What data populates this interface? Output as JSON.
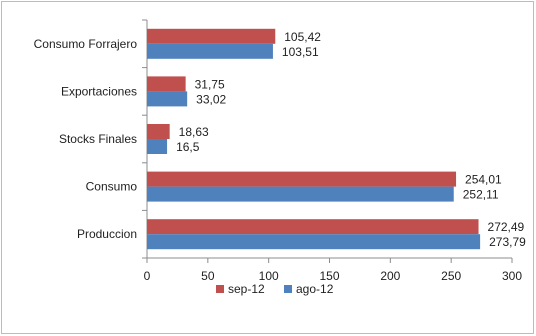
{
  "chart_data": {
    "type": "bar",
    "orientation": "horizontal",
    "categories": [
      "Consumo Forrajero",
      "Exportaciones",
      "Stocks Finales",
      "Consumo",
      "Produccion"
    ],
    "series": [
      {
        "name": "sep-12",
        "color": "#c0504d",
        "values": [
          105.42,
          31.75,
          18.63,
          254.01,
          272.49
        ],
        "labels": [
          "105,42",
          "31,75",
          "18,63",
          "254,01",
          "272,49"
        ]
      },
      {
        "name": "ago-12",
        "color": "#4f81bd",
        "values": [
          103.51,
          33.02,
          16.5,
          252.11,
          273.79
        ],
        "labels": [
          "103,51",
          "33,02",
          "16,5",
          "252,11",
          "273,79"
        ]
      }
    ],
    "xlim": [
      0,
      300
    ],
    "xticks": [
      0,
      50,
      100,
      150,
      200,
      250,
      300
    ],
    "grid": false,
    "legend_position": "bottom"
  }
}
